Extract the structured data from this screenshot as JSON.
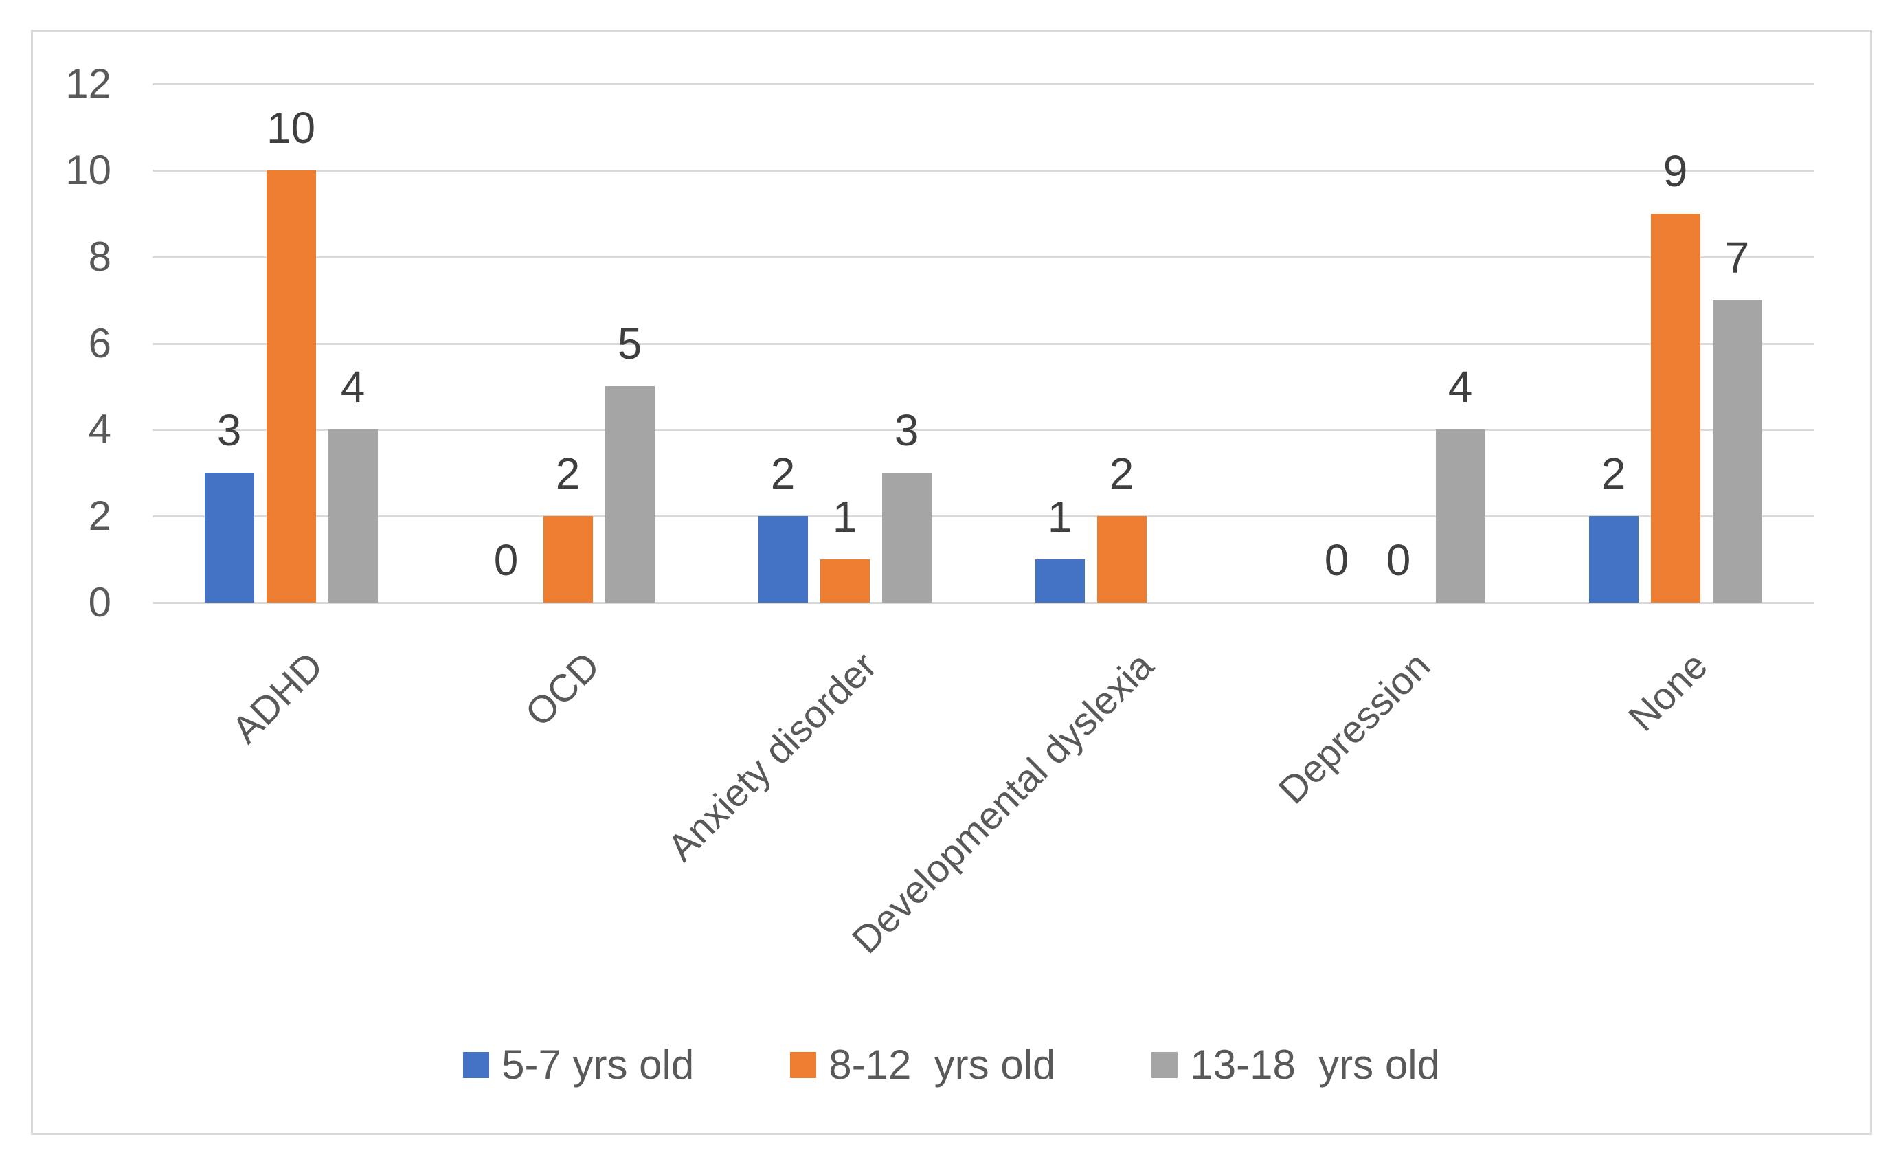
{
  "chart_data": {
    "type": "bar",
    "title": "",
    "xlabel": "",
    "ylabel": "",
    "categories": [
      "ADHD",
      "OCD",
      "Anxiety disorder",
      "Developmental dyslexia",
      "Depression",
      "None"
    ],
    "series": [
      {
        "name": "5-7 yrs old",
        "color": "#4472C4",
        "values": [
          3,
          0,
          2,
          1,
          0,
          2
        ]
      },
      {
        "name": "8-12  yrs old",
        "color": "#ED7D31",
        "values": [
          10,
          2,
          1,
          2,
          0,
          9
        ]
      },
      {
        "name": "13-18  yrs old",
        "color": "#A5A5A5",
        "values": [
          4,
          5,
          3,
          null,
          4,
          7
        ]
      }
    ],
    "ylim": [
      0,
      12
    ],
    "y_ticks": [
      0,
      2,
      4,
      6,
      8,
      10,
      12
    ],
    "y_tick_labels": [
      "0",
      "2",
      "4",
      "6",
      "8",
      "10",
      "12"
    ],
    "grid": "horizontal gridlines at every y tick",
    "gridline_color": "#D9D9D9",
    "legend_position": "bottom",
    "legend_labels": [
      "5-7 yrs old",
      "8-12  yrs old",
      "13-18  yrs old"
    ],
    "data_labels": "values shown above each bar; zero values labeled 0; the 13-18 value for Developmental dyslexia is missing (no bar, no label)",
    "x_tick_label_rotation_deg": 45,
    "axis_text_color": "#595959",
    "data_label_text_color": "#3F3F3F",
    "plot_border_color": "#D9D9D9",
    "background_color": "#FFFFFF"
  }
}
